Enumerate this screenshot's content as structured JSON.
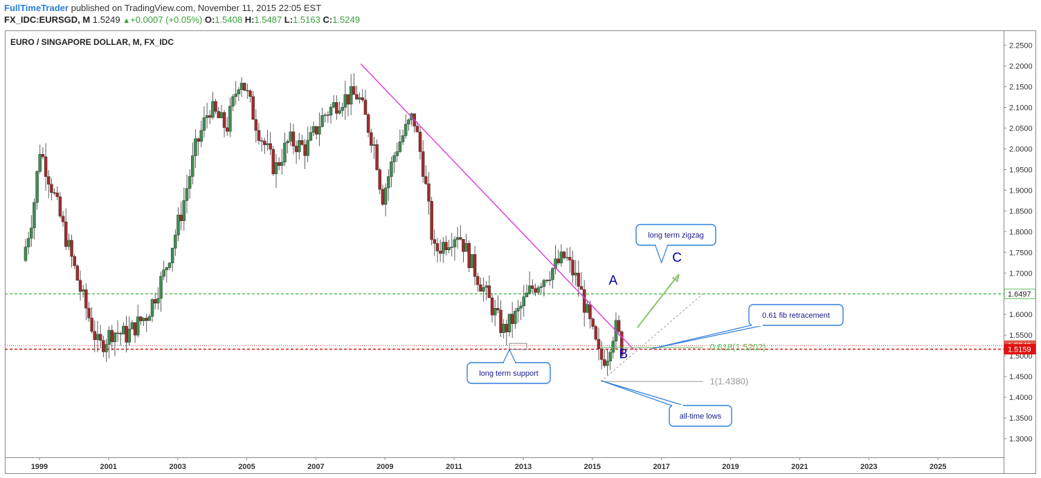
{
  "header": {
    "author": "FullTimeTrader",
    "published": "published on TradingView.com, November 11, 2015 22:05 EST",
    "symbol": "FX_IDC:EURSGD, M",
    "last": "1.5249",
    "change": "+0.0007 (+0.05%)",
    "o_label": "O:",
    "o_value": "1.5408",
    "h_label": "H:",
    "h_value": "1.5487",
    "l_label": "L:",
    "l_value": "1.5163",
    "c_label": "C:",
    "c_value": "1.5249"
  },
  "colors": {
    "up": "#3f8f4f",
    "down": "#a52a2a",
    "trendline": "#e040e0",
    "level_green": "#5cbf5c",
    "level_red": "#e02020",
    "callout": "#2f7ed8",
    "label_blue": "#0000aa"
  },
  "chart_data": {
    "type": "candlestick",
    "title": "EURO / SINGAPORE DOLLAR, M, FX_IDC",
    "x_ticks": [
      "1999",
      "2001",
      "2003",
      "2005",
      "2007",
      "2009",
      "2011",
      "2013",
      "2015",
      "2017",
      "2019",
      "2021",
      "2023",
      "2025"
    ],
    "y_ticks": [
      "2.2500",
      "2.2000",
      "2.1500",
      "2.1000",
      "2.0500",
      "2.0000",
      "1.9500",
      "1.9000",
      "1.8500",
      "1.8000",
      "1.7500",
      "1.7000",
      "1.6500",
      "1.6000",
      "1.5500",
      "1.5000",
      "1.4500",
      "1.4000",
      "1.3500",
      "1.3000"
    ],
    "ylim": [
      1.255,
      2.286
    ],
    "xlim": [
      1998.0,
      2026.9
    ],
    "grid": false,
    "anchors": [
      [
        1998.6,
        1.73
      ],
      [
        1998.9,
        1.85
      ],
      [
        1999.1,
        2.0
      ],
      [
        1999.4,
        1.92
      ],
      [
        1999.8,
        1.8
      ],
      [
        2000.3,
        1.65
      ],
      [
        2000.8,
        1.52
      ],
      [
        2001.2,
        1.56
      ],
      [
        2001.6,
        1.55
      ],
      [
        2002.2,
        1.6
      ],
      [
        2002.7,
        1.7
      ],
      [
        2003.2,
        1.85
      ],
      [
        2003.6,
        2.0
      ],
      [
        2004.0,
        2.1
      ],
      [
        2004.5,
        2.05
      ],
      [
        2004.9,
        2.18
      ],
      [
        2005.4,
        2.05
      ],
      [
        2005.9,
        1.95
      ],
      [
        2006.3,
        2.02
      ],
      [
        2006.8,
        2.0
      ],
      [
        2007.3,
        2.08
      ],
      [
        2007.8,
        2.12
      ],
      [
        2008.3,
        2.13
      ],
      [
        2008.8,
        2.0
      ],
      [
        2009.0,
        1.88
      ],
      [
        2009.4,
        2.0
      ],
      [
        2009.9,
        2.08
      ],
      [
        2010.2,
        1.95
      ],
      [
        2010.5,
        1.75
      ],
      [
        2010.9,
        1.78
      ],
      [
        2011.2,
        1.8
      ],
      [
        2011.6,
        1.72
      ],
      [
        2012.0,
        1.65
      ],
      [
        2012.5,
        1.56
      ],
      [
        2012.9,
        1.6
      ],
      [
        2013.3,
        1.66
      ],
      [
        2013.8,
        1.7
      ],
      [
        2014.3,
        1.74
      ],
      [
        2014.7,
        1.67
      ],
      [
        2015.0,
        1.58
      ],
      [
        2015.3,
        1.49
      ],
      [
        2015.5,
        1.5
      ],
      [
        2015.65,
        1.55
      ],
      [
        2015.8,
        1.57
      ],
      [
        2015.9,
        1.52
      ]
    ],
    "levels": [
      {
        "label": "1.6497",
        "value": 1.6497,
        "style": "dashed",
        "color": "#5cbf5c"
      },
      {
        "label": "1.5249",
        "value": 1.5249,
        "style": "dotted",
        "color": "#e02020"
      },
      {
        "label": "1.5159",
        "value": 1.5159,
        "style": "dashed",
        "color": "#e02020"
      }
    ],
    "trendline": {
      "from": [
        2008.3,
        2.205
      ],
      "to": [
        2016.2,
        1.515
      ]
    },
    "fib": {
      "line": {
        "from": [
          2015.25,
          1.438
        ],
        "to": [
          2018.2,
          1.6497
        ]
      },
      "levels": [
        {
          "label": "0.618(1.5202)",
          "value": 1.5202
        },
        {
          "label": "1(1.4380)",
          "value": 1.438
        }
      ]
    },
    "projection": {
      "from": [
        2016.3,
        1.568
      ],
      "to": [
        2017.5,
        1.697
      ]
    },
    "wave_labels": [
      {
        "text": "A",
        "x": 2015.6,
        "y": 1.672
      },
      {
        "text": "B",
        "x": 2015.9,
        "y": 1.494
      },
      {
        "text": "C",
        "x": 2017.45,
        "y": 1.727
      }
    ],
    "support_box": {
      "x0": 2012.6,
      "x1": 2013.1,
      "y0": 1.515,
      "y1": 1.53
    },
    "annotations": [
      {
        "text": "long term zigzag",
        "target": [
          2017.0,
          1.725
        ]
      },
      {
        "text": "0.61 fib retracement",
        "target": [
          2016.7,
          1.517
        ]
      },
      {
        "text": "long term support",
        "target": [
          2012.6,
          1.515
        ]
      },
      {
        "text": "all-time lows",
        "target": [
          2015.25,
          1.44
        ]
      }
    ]
  }
}
